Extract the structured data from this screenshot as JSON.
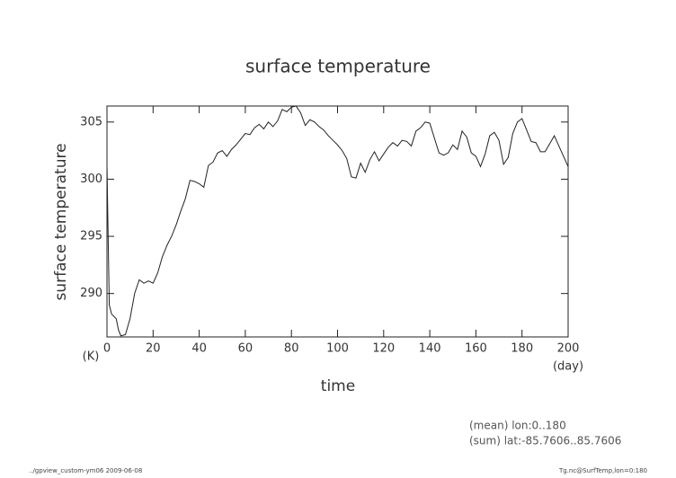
{
  "chart_data": {
    "type": "line",
    "title": "surface temperature",
    "ylabel": "surface temperature",
    "yunit": "(K)",
    "xlabel": "time",
    "xunit": "(day)",
    "notes": [
      "(mean) lon:0..180",
      "(sum) lat:-85.7606..85.7606"
    ],
    "footer_left": "../gpview_custom-ym06  2009-06-08",
    "footer_right": "Tg.nc@SurfTemp,lon=0:180",
    "color": "#222222",
    "x": [
      0,
      1,
      2,
      4,
      5,
      6,
      8,
      10,
      12,
      14,
      16,
      18,
      20,
      22,
      24,
      26,
      28,
      30,
      32,
      34,
      36,
      38,
      40,
      42,
      44,
      46,
      48,
      50,
      52,
      54,
      56,
      58,
      60,
      62,
      64,
      66,
      68,
      70,
      72,
      74,
      76,
      78,
      80,
      82,
      84,
      86,
      88,
      90,
      92,
      94,
      96,
      98,
      100,
      102,
      104,
      106,
      108,
      110,
      112,
      114,
      116,
      118,
      120,
      122,
      124,
      126,
      128,
      130,
      132,
      134,
      136,
      138,
      140,
      142,
      144,
      146,
      148,
      150,
      152,
      154,
      156,
      158,
      160,
      162,
      164,
      166,
      168,
      170,
      172,
      174,
      176,
      178,
      180,
      182,
      184,
      186,
      188,
      190,
      192,
      194,
      196,
      198,
      200
    ],
    "values": [
      301.2,
      289.0,
      288.2,
      287.8,
      286.8,
      286.3,
      286.4,
      287.8,
      290.0,
      291.2,
      290.9,
      291.1,
      290.9,
      291.8,
      293.2,
      294.2,
      295.0,
      296.0,
      297.2,
      298.3,
      299.9,
      299.8,
      299.6,
      299.3,
      301.2,
      301.5,
      302.3,
      302.5,
      302.0,
      302.6,
      303.0,
      303.5,
      304.0,
      303.9,
      304.5,
      304.8,
      304.4,
      305.0,
      304.6,
      305.1,
      306.1,
      305.9,
      306.3,
      306.4,
      305.8,
      304.7,
      305.2,
      305.0,
      304.6,
      304.3,
      303.8,
      303.4,
      303.0,
      302.5,
      301.8,
      300.2,
      300.1,
      301.4,
      300.6,
      301.7,
      302.4,
      301.6,
      302.2,
      302.8,
      303.2,
      302.9,
      303.4,
      303.3,
      302.9,
      304.2,
      304.5,
      305.0,
      304.9,
      303.6,
      302.3,
      302.1,
      302.3,
      303.0,
      302.6,
      304.2,
      303.7,
      302.3,
      302.0,
      301.1,
      302.2,
      303.8,
      304.1,
      303.4,
      301.3,
      301.9,
      304.0,
      305.0,
      305.3,
      304.3,
      303.3,
      303.2,
      302.4,
      302.4,
      303.1,
      303.8,
      302.9,
      302.0,
      301.1
    ],
    "xlim": [
      0,
      200
    ],
    "xticks": [
      0,
      20,
      40,
      60,
      80,
      100,
      120,
      140,
      160,
      180,
      200
    ],
    "ylim": [
      286.2,
      306.4
    ],
    "yticks": [
      290,
      295,
      300,
      305
    ]
  }
}
